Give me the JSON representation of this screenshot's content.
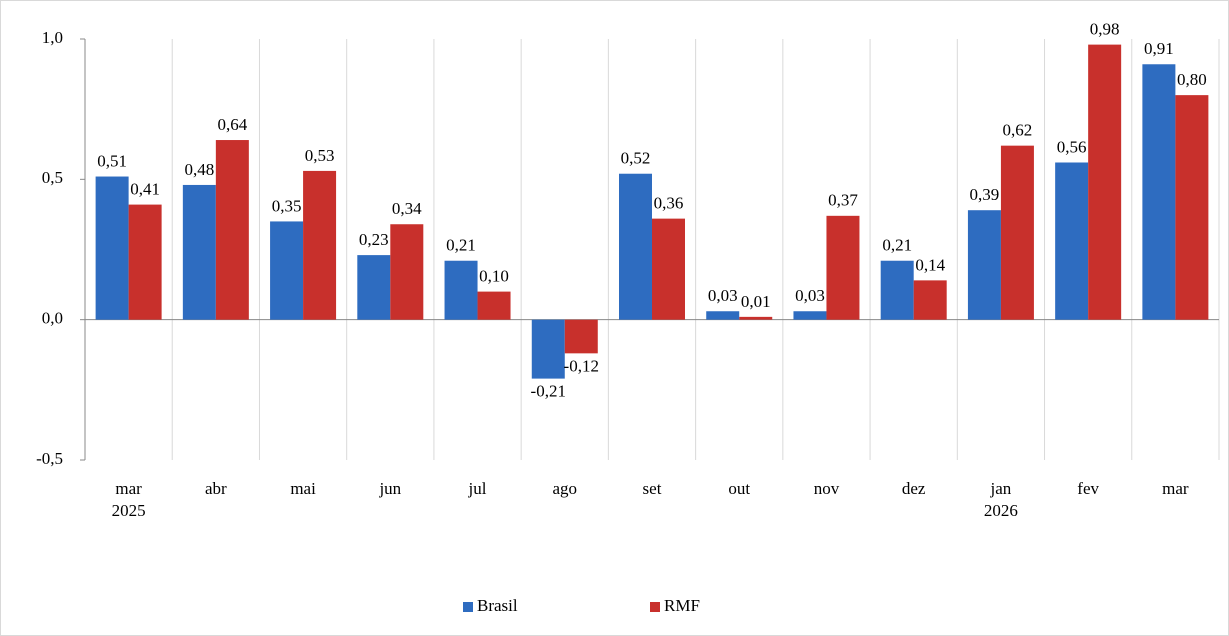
{
  "chart_data": {
    "type": "bar",
    "categories": [
      [
        "mar",
        "2025"
      ],
      [
        "abr"
      ],
      [
        "mai"
      ],
      [
        "jun"
      ],
      [
        "jul"
      ],
      [
        "ago"
      ],
      [
        "set"
      ],
      [
        "out"
      ],
      [
        "nov"
      ],
      [
        "dez"
      ],
      [
        "jan",
        "2026"
      ],
      [
        "fev"
      ],
      [
        "mar"
      ]
    ],
    "series": [
      {
        "name": "Brasil",
        "color": "#2e6cc0",
        "values": [
          0.51,
          0.48,
          0.35,
          0.23,
          0.21,
          -0.21,
          0.52,
          0.03,
          0.03,
          0.21,
          0.39,
          0.56,
          0.91
        ],
        "value_labels": [
          "0,51",
          "0,48",
          "0,35",
          "0,23",
          "0,21",
          "-0,21",
          "0,52",
          "0,03",
          "0,03",
          "0,21",
          "0,39",
          "0,56",
          "0,91"
        ]
      },
      {
        "name": "RMF",
        "color": "#c8302c",
        "values": [
          0.41,
          0.64,
          0.53,
          0.34,
          0.1,
          -0.12,
          0.36,
          0.01,
          0.37,
          0.14,
          0.62,
          0.98,
          0.8
        ],
        "value_labels": [
          "0,41",
          "0,64",
          "0,53",
          "0,34",
          "0,10",
          "-0,12",
          "0,36",
          "0,01",
          "0,37",
          "0,14",
          "0,62",
          "0,98",
          "0,80"
        ]
      }
    ],
    "ylim": [
      -0.5,
      1.0
    ],
    "yticks": [
      {
        "value": -0.5,
        "label": "-0,5"
      },
      {
        "value": 0,
        "label": "0,0"
      },
      {
        "value": 0.5,
        "label": "0,5"
      },
      {
        "value": 1.0,
        "label": "1,0"
      }
    ],
    "negative_color": "#ff0000",
    "legend": "bottom"
  }
}
